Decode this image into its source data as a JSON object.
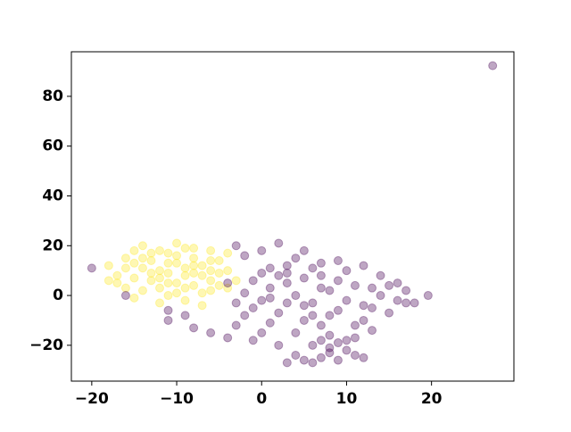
{
  "chart_data": {
    "type": "scatter",
    "xlim": [
      -22.4,
      29.7
    ],
    "ylim": [
      -34.4,
      97.9
    ],
    "xticks": [
      {
        "value": -20,
        "label": "−20"
      },
      {
        "value": -10,
        "label": "−10"
      },
      0,
      10,
      20
    ],
    "yticks": [
      {
        "value": -20,
        "label": "−20"
      },
      0,
      20,
      40,
      60,
      80
    ],
    "alpha": 0.35,
    "series": [
      {
        "color": "#fde725",
        "x": [
          -18,
          -17,
          -16,
          -15,
          -14,
          -13,
          -12,
          -11,
          -10,
          -9,
          -8,
          -7,
          -6,
          -5,
          -4,
          -3,
          -17,
          -16,
          -15,
          -14,
          -13,
          -12,
          -11,
          -10,
          -9,
          -8,
          -7,
          -6,
          -5,
          -4,
          -12,
          -10,
          -9,
          -8,
          -11,
          -13,
          -14,
          -15,
          -12,
          -9,
          -7,
          -6,
          -10,
          -8,
          -6,
          -5,
          -11,
          -13,
          -16,
          -18,
          -7,
          -9,
          -12,
          -14,
          -10,
          -8,
          -11,
          -15,
          -6,
          -4
        ],
        "values": [
          12,
          8,
          15,
          18,
          20,
          14,
          10,
          17,
          21,
          19,
          15,
          12,
          18,
          14,
          10,
          6,
          5,
          3,
          7,
          11,
          6,
          3,
          0,
          5,
          8,
          4,
          1,
          6,
          9,
          3,
          18,
          13,
          11,
          9,
          9,
          9,
          2,
          -1,
          -3,
          -2,
          -4,
          2,
          16,
          19,
          14,
          4,
          13,
          17,
          11,
          6,
          8,
          3,
          7,
          15,
          1,
          12,
          5,
          13,
          10,
          17
        ]
      },
      {
        "color": "#440154",
        "x": [
          -20,
          -16,
          -11,
          -11,
          -9,
          -8,
          -6,
          -4,
          -3,
          -2,
          -1,
          0,
          1,
          2,
          3,
          4,
          5,
          2,
          -3,
          -2,
          0,
          1,
          -1,
          3,
          4,
          5,
          6,
          7,
          8,
          9,
          10,
          11,
          12,
          5,
          6,
          7,
          8,
          9,
          6,
          7,
          8,
          4,
          3,
          10,
          11,
          12,
          13,
          14,
          15,
          16,
          17,
          18,
          19.6,
          14,
          12,
          10,
          9,
          8,
          7,
          6,
          5,
          3,
          2,
          1,
          0,
          -1,
          2,
          4,
          5,
          6,
          7,
          9,
          10,
          11,
          12,
          13,
          15,
          16,
          17,
          11,
          13,
          8,
          9,
          7,
          3,
          1,
          -2,
          -4,
          -3,
          0,
          27.2
        ],
        "values": [
          11,
          0,
          -10,
          -6,
          -8,
          -13,
          -15,
          -17,
          -12,
          -8,
          -5,
          -2,
          3,
          8,
          12,
          15,
          18,
          21,
          20,
          16,
          18,
          11,
          6,
          5,
          0,
          -4,
          -8,
          -12,
          -16,
          -19,
          -22,
          -24,
          -25,
          -26,
          -27,
          -25,
          -23,
          -26,
          -20,
          -18,
          -21,
          -24,
          -27,
          -18,
          -17,
          -10,
          -5,
          0,
          4,
          -2,
          2,
          -3,
          0,
          8,
          12,
          10,
          6,
          2,
          8,
          11,
          7,
          -3,
          -7,
          -11,
          -15,
          -18,
          -20,
          -15,
          -10,
          -3,
          3,
          -6,
          -2,
          4,
          -4,
          3,
          -7,
          5,
          -3,
          -12,
          -14,
          -8,
          14,
          13,
          9,
          -1,
          1,
          5,
          -3,
          9,
          92.3
        ]
      }
    ]
  }
}
